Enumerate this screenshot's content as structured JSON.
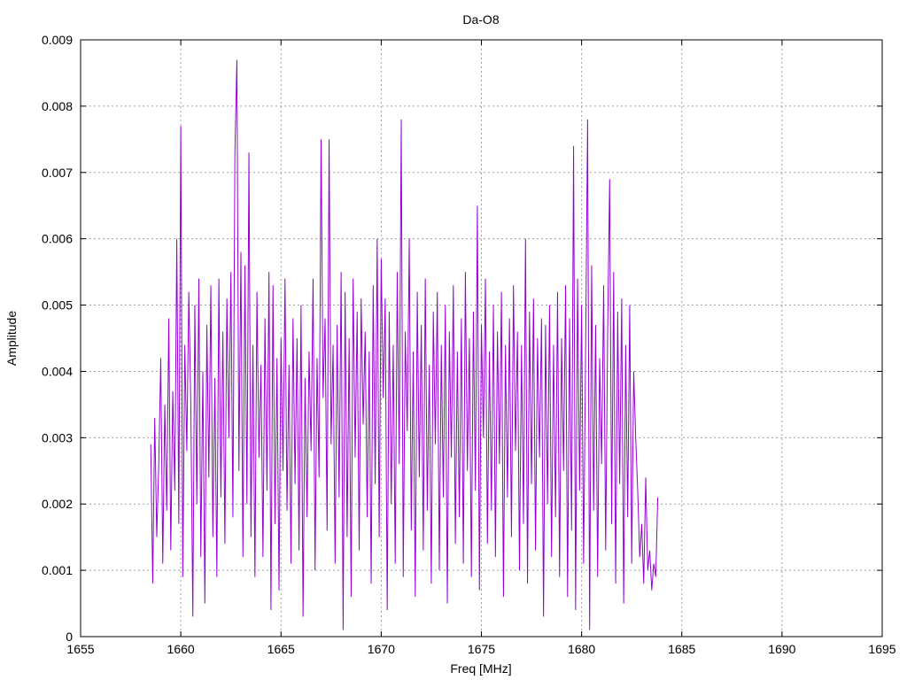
{
  "chart_data": {
    "type": "line",
    "title": "Da-O8",
    "xlabel": "Freq [MHz]",
    "ylabel": "Amplitude",
    "xlim": [
      1655,
      1695
    ],
    "ylim": [
      0,
      0.009
    ],
    "xticks": [
      "1655",
      "1660",
      "1665",
      "1670",
      "1675",
      "1680",
      "1685",
      "1690",
      "1695"
    ],
    "yticks": [
      "0",
      "0.001",
      "0.002",
      "0.003",
      "0.004",
      "0.005",
      "0.006",
      "0.007",
      "0.008",
      "0.009"
    ],
    "grid": true,
    "line_color": "#9400d3",
    "series": [
      {
        "x_start": 1658.5,
        "x_step": 0.1,
        "values": [
          0.0029,
          0.0008,
          0.0033,
          0.0015,
          0.0026,
          0.0042,
          0.0011,
          0.0035,
          0.0019,
          0.0048,
          0.0013,
          0.0037,
          0.0022,
          0.006,
          0.0017,
          0.0077,
          0.0009,
          0.0044,
          0.0028,
          0.0052,
          0.0035,
          0.0003,
          0.005,
          0.002,
          0.0054,
          0.0012,
          0.004,
          0.0005,
          0.0047,
          0.0024,
          0.0053,
          0.0015,
          0.0039,
          0.0009,
          0.0054,
          0.0021,
          0.0046,
          0.0014,
          0.0051,
          0.003,
          0.0055,
          0.0018,
          0.0073,
          0.0087,
          0.0025,
          0.0058,
          0.0012,
          0.0056,
          0.002,
          0.0073,
          0.0015,
          0.0044,
          0.0009,
          0.0052,
          0.0027,
          0.0041,
          0.0012,
          0.0048,
          0.0022,
          0.0055,
          0.0004,
          0.0053,
          0.0017,
          0.0042,
          0.0007,
          0.0045,
          0.0025,
          0.0054,
          0.0019,
          0.0041,
          0.0011,
          0.0048,
          0.0023,
          0.0045,
          0.0013,
          0.005,
          0.0003,
          0.0039,
          0.0018,
          0.0043,
          0.0028,
          0.0054,
          0.001,
          0.0042,
          0.0024,
          0.0075,
          0.0036,
          0.0048,
          0.0016,
          0.0075,
          0.0029,
          0.0044,
          0.0011,
          0.0047,
          0.0021,
          0.0055,
          0.0001,
          0.0052,
          0.0015,
          0.0045,
          0.0006,
          0.0054,
          0.0027,
          0.0049,
          0.0013,
          0.0051,
          0.0032,
          0.0046,
          0.0018,
          0.0043,
          0.0008,
          0.0053,
          0.0023,
          0.006,
          0.0015,
          0.0057,
          0.0036,
          0.0051,
          0.0004,
          0.0049,
          0.002,
          0.0044,
          0.0011,
          0.0055,
          0.0026,
          0.0078,
          0.0009,
          0.0046,
          0.0031,
          0.006,
          0.0016,
          0.0043,
          0.0006,
          0.0052,
          0.0024,
          0.0047,
          0.0013,
          0.0054,
          0.0019,
          0.0041,
          0.0008,
          0.0049,
          0.0029,
          0.0052,
          0.001,
          0.0044,
          0.0021,
          0.005,
          0.0005,
          0.0046,
          0.0027,
          0.0053,
          0.0014,
          0.0043,
          0.0018,
          0.0048,
          0.0011,
          0.0055,
          0.0025,
          0.0045,
          0.0009,
          0.0049,
          0.0022,
          0.0065,
          0.0007,
          0.0047,
          0.003,
          0.0054,
          0.0014,
          0.0043,
          0.0019,
          0.005,
          0.0012,
          0.0046,
          0.0026,
          0.0052,
          0.0006,
          0.0044,
          0.0021,
          0.0048,
          0.0015,
          0.0053,
          0.0028,
          0.0046,
          0.001,
          0.0044,
          0.0017,
          0.006,
          0.0008,
          0.0049,
          0.0023,
          0.0051,
          0.0013,
          0.0045,
          0.0027,
          0.0048,
          0.0003,
          0.0047,
          0.002,
          0.005,
          0.0012,
          0.0044,
          0.0018,
          0.0052,
          0.0009,
          0.0045,
          0.0025,
          0.0053,
          0.0006,
          0.0048,
          0.0016,
          0.0074,
          0.0004,
          0.0054,
          0.0022,
          0.005,
          0.0011,
          0.0043,
          0.0078,
          0.0001,
          0.0056,
          0.0019,
          0.0047,
          0.0009,
          0.0042,
          0.0026,
          0.0053,
          0.0013,
          0.0046,
          0.0069,
          0.0017,
          0.0055,
          0.0008,
          0.0049,
          0.0023,
          0.0051,
          0.0005,
          0.0044,
          0.0018,
          0.005,
          0.0011,
          0.004,
          0.003,
          0.0022,
          0.0012,
          0.0017,
          0.0008,
          0.0024,
          0.001,
          0.0013,
          0.0007,
          0.0011,
          0.0009,
          0.0021
        ]
      }
    ]
  }
}
